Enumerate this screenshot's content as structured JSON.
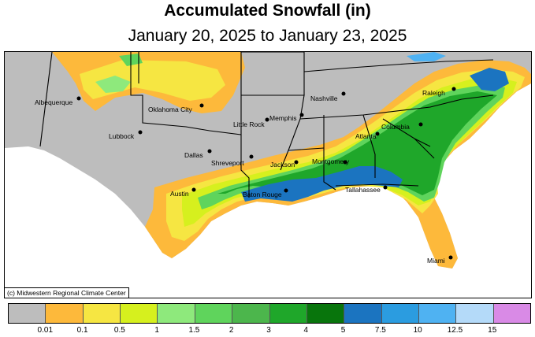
{
  "title": "Accumulated Snowfall (in)",
  "subtitle": "January 20, 2025 to January 23, 2025",
  "credit": "(c) Midwestern Regional Climate Center",
  "legend": {
    "colors": [
      "#bdbdbd",
      "#fdb93b",
      "#f6e642",
      "#d6f01e",
      "#8ee97c",
      "#5fd45c",
      "#4cb64c",
      "#1fa72a",
      "#08750c",
      "#1b74c0",
      "#2b9ce0",
      "#4fb2f2",
      "#b4daf9",
      "#d98ae6"
    ],
    "labels": [
      "0.01",
      "0.1",
      "0.5",
      "1",
      "1.5",
      "2",
      "3",
      "4",
      "5",
      "7.5",
      "10",
      "12.5",
      "15"
    ]
  },
  "cities": [
    {
      "name": "Albequerque"
    },
    {
      "name": "Oklahoma City"
    },
    {
      "name": "Lubbock"
    },
    {
      "name": "Dallas"
    },
    {
      "name": "Shreveport"
    },
    {
      "name": "Austin"
    },
    {
      "name": "Little Rock"
    },
    {
      "name": "Memphis"
    },
    {
      "name": "Nashville"
    },
    {
      "name": "Jackson"
    },
    {
      "name": "Baton Rouge"
    },
    {
      "name": "Montgomery"
    },
    {
      "name": "Atlanta"
    },
    {
      "name": "Tallahassee"
    },
    {
      "name": "Columbia"
    },
    {
      "name": "Raleigh"
    },
    {
      "name": "Miami"
    }
  ]
}
